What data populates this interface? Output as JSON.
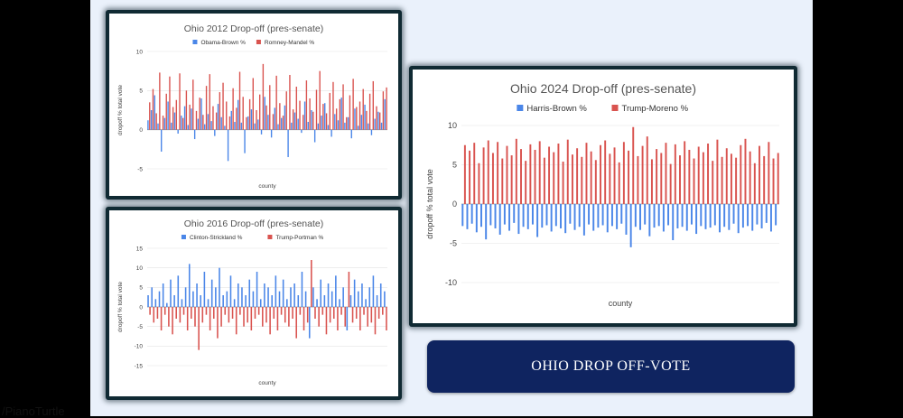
{
  "banner": {
    "text": "OHIO DROP OFF-VOTE"
  },
  "credit": "/PianoTurtle",
  "colors": {
    "dem": "#4a86e8",
    "rep": "#d9534f",
    "grid": "#e3e3e3",
    "text": "#555555"
  },
  "chart_data": [
    {
      "type": "bar",
      "title": "Ohio 2012 Drop-off (pres-senate)",
      "xlabel": "county",
      "ylabel": "dropoff % total vote",
      "ylim": [
        -5,
        10
      ],
      "yticks": [
        -5,
        0,
        5,
        10
      ],
      "grid": true,
      "legend": "top-center",
      "series": [
        {
          "name": "Obama-Brown %",
          "values": [
            1.2,
            2.5,
            4.4,
            0.8,
            -2.8,
            1.5,
            3.6,
            0.9,
            2.2,
            -0.5,
            1.8,
            3.0,
            0.6,
            2.7,
            -1.2,
            1.4,
            4.0,
            0.7,
            2.0,
            1.1,
            -0.8,
            3.3,
            1.6,
            0.5,
            -4.0,
            2.4,
            1.0,
            3.8,
            0.9,
            -3.0,
            1.7,
            2.6,
            0.8,
            1.3,
            -0.6,
            4.2,
            1.9,
            -1.0,
            2.8,
            0.7,
            1.5,
            3.1,
            -3.5,
            0.9,
            2.2,
            1.4,
            -0.4,
            3.6,
            1.0,
            2.5,
            -1.6,
            0.8,
            1.8,
            3.4,
            0.6,
            -0.9,
            2.0,
            1.2,
            4.1,
            0.9,
            1.6,
            -1.1,
            2.7,
            0.5,
            1.9,
            3.2,
            0.8,
            -0.7,
            1.4,
            2.3,
            0.9,
            3.9
          ]
        },
        {
          "name": "Romney-Mandel %",
          "values": [
            3.5,
            5.2,
            2.1,
            7.3,
            1.8,
            4.6,
            6.8,
            2.9,
            3.8,
            7.2,
            1.5,
            5.0,
            3.2,
            6.4,
            2.4,
            4.1,
            1.9,
            5.6,
            7.1,
            3.0,
            2.2,
            4.8,
            6.0,
            3.6,
            1.7,
            5.3,
            2.8,
            7.4,
            4.2,
            1.6,
            3.9,
            6.6,
            2.5,
            4.5,
            8.4,
            3.1,
            5.7,
            2.0,
            6.9,
            3.4,
            1.8,
            4.9,
            7.0,
            2.6,
            5.5,
            3.7,
            1.9,
            6.3,
            4.0,
            2.3,
            5.1,
            7.5,
            3.3,
            2.1,
            4.7,
            6.1,
            2.7,
            3.9,
            5.8,
            1.6,
            4.4,
            6.5,
            2.9,
            3.6,
            5.2,
            2.4,
            4.6,
            6.2,
            3.0,
            2.2,
            4.9,
            5.4
          ]
        }
      ]
    },
    {
      "type": "bar",
      "title": "Ohio 2016 Drop-off (pres-senate)",
      "xlabel": "county",
      "ylabel": "dropoff % total vote",
      "ylim": [
        -15,
        15
      ],
      "yticks": [
        -15,
        -10,
        -5,
        0,
        5,
        10,
        15
      ],
      "grid": true,
      "legend": "top-center",
      "series": [
        {
          "name": "Clinton-Strickland %",
          "values": [
            3,
            5,
            2,
            4,
            6,
            1,
            7,
            3,
            8,
            2,
            5,
            11,
            4,
            6,
            3,
            9,
            2,
            7,
            5,
            10,
            3,
            4,
            8,
            2,
            6,
            5,
            3,
            7,
            4,
            9,
            2,
            6,
            5,
            3,
            8,
            4,
            7,
            2,
            5,
            6,
            3,
            9,
            4,
            -8,
            5,
            2,
            7,
            3,
            6,
            4,
            8,
            2,
            5,
            -6,
            3,
            7,
            4,
            6,
            2,
            5,
            8,
            3,
            6,
            4
          ]
        },
        {
          "name": "Trump-Portman %",
          "values": [
            -2,
            -4,
            -3,
            -6,
            -2,
            -5,
            -7,
            -3,
            -4,
            -2,
            -6,
            -3,
            -5,
            -11,
            -4,
            -2,
            -6,
            -3,
            -8,
            -5,
            -2,
            -4,
            -3,
            -7,
            -2,
            -5,
            -4,
            -6,
            -3,
            -2,
            -5,
            -4,
            -7,
            -3,
            -6,
            -2,
            -4,
            -5,
            -3,
            -8,
            -2,
            -6,
            -4,
            12,
            -3,
            -5,
            -2,
            -7,
            -4,
            -3,
            -6,
            -2,
            -5,
            9,
            -4,
            -3,
            -6,
            -2,
            -5,
            -4,
            -7,
            -3,
            -2,
            -6
          ]
        }
      ]
    },
    {
      "type": "bar",
      "title": "Ohio 2024 Drop-off (pres-senate)",
      "xlabel": "county",
      "ylabel": "dropoff % total vote",
      "ylim": [
        -10,
        10
      ],
      "yticks": [
        -10,
        -5,
        0,
        5,
        10
      ],
      "grid": true,
      "legend": "top-center",
      "series": [
        {
          "name": "Harris-Brown %",
          "values": [
            -2.8,
            -3.2,
            -2.5,
            -3.6,
            -2.9,
            -4.5,
            -2.7,
            -3.1,
            -3.9,
            -2.6,
            -3.4,
            -2.4,
            -3.8,
            -2.9,
            -3.2,
            -2.6,
            -4.2,
            -3.0,
            -2.7,
            -3.5,
            -2.8,
            -3.1,
            -3.7,
            -2.5,
            -3.3,
            -2.9,
            -4.0,
            -2.6,
            -3.4,
            -3.0,
            -2.7,
            -3.6,
            -2.8,
            -3.2,
            -2.5,
            -3.9,
            -5.5,
            -2.9,
            -3.3,
            -2.6,
            -4.1,
            -3.0,
            -2.8,
            -3.5,
            -2.7,
            -4.6,
            -3.1,
            -2.9,
            -3.4,
            -2.6,
            -3.8,
            -2.8,
            -3.2,
            -3.0,
            -2.7,
            -3.6,
            -2.9,
            -3.3,
            -2.5,
            -3.7,
            -3.0,
            -2.8,
            -3.4,
            -2.6,
            -3.1,
            -2.4,
            -3.5,
            -2.7
          ]
        },
        {
          "name": "Trump-Moreno %",
          "values": [
            7.5,
            6.8,
            7.8,
            5.2,
            7.2,
            8.1,
            6.5,
            7.9,
            5.8,
            7.4,
            6.2,
            8.3,
            7.0,
            5.5,
            7.6,
            6.9,
            8.0,
            5.9,
            7.3,
            6.6,
            7.7,
            5.4,
            8.2,
            6.3,
            7.1,
            6.0,
            7.8,
            6.7,
            5.6,
            7.5,
            8.1,
            6.4,
            7.2,
            5.3,
            7.9,
            6.8,
            9.8,
            6.1,
            7.4,
            8.6,
            5.7,
            7.0,
            6.5,
            7.8,
            5.1,
            7.6,
            6.2,
            8.0,
            6.9,
            5.8,
            7.3,
            6.6,
            7.7,
            5.5,
            8.2,
            6.0,
            7.1,
            6.4,
            5.9,
            7.5,
            8.3,
            6.7,
            5.2,
            7.4,
            6.1,
            7.9,
            5.8,
            6.5
          ]
        }
      ]
    }
  ]
}
